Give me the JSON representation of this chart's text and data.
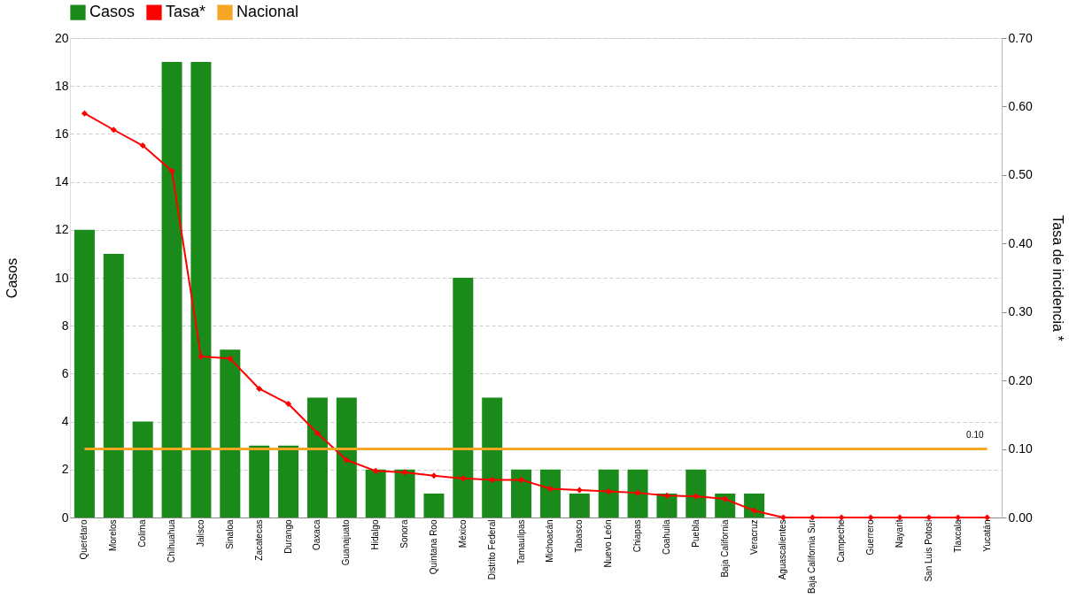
{
  "chart_data": {
    "type": "bar",
    "categories": [
      "Querétaro",
      "Morelos",
      "Colima",
      "Chihuahua",
      "Jalisco",
      "Sinaloa",
      "Zacatecas",
      "Durango",
      "Oaxaca",
      "Guanajuato",
      "Hidalgo",
      "Sonora",
      "Quintana Roo",
      "México",
      "Distrito Federal",
      "Tamaulipas",
      "Michoacán",
      "Tabasco",
      "Nuevo León",
      "Chiapas",
      "Coahuila",
      "Puebla",
      "Baja California",
      "Veracruz",
      "Aguascalientes",
      "Baja California Sur",
      "Campeche",
      "Guerrero",
      "Nayarit",
      "San Luis Potosí",
      "Tlaxcala",
      "Yucatán"
    ],
    "series": [
      {
        "name": "Casos",
        "color": "#1a8a1a",
        "values": [
          12,
          11,
          4,
          19,
          19,
          7,
          3,
          3,
          5,
          5,
          2,
          2,
          1,
          10,
          5,
          2,
          2,
          1,
          2,
          2,
          1,
          2,
          1,
          1,
          0,
          0,
          0,
          0,
          0,
          0,
          0,
          0
        ]
      },
      {
        "name": "Tasa*",
        "type": "line",
        "axis": "y2",
        "color": "#ff0000",
        "marker": "diamond",
        "values": [
          0.59,
          0.566,
          0.543,
          0.506,
          0.235,
          0.232,
          0.188,
          0.166,
          0.123,
          0.084,
          0.068,
          0.066,
          0.061,
          0.057,
          0.055,
          0.055,
          0.042,
          0.04,
          0.038,
          0.036,
          0.032,
          0.031,
          0.027,
          0.01,
          0,
          0,
          0,
          0,
          0,
          0,
          0,
          0
        ]
      },
      {
        "name": "Nacional",
        "type": "line",
        "axis": "y2",
        "color": "#f5a623",
        "marker": "none",
        "values": [
          0.1,
          0.1,
          0.1,
          0.1,
          0.1,
          0.1,
          0.1,
          0.1,
          0.1,
          0.1,
          0.1,
          0.1,
          0.1,
          0.1,
          0.1,
          0.1,
          0.1,
          0.1,
          0.1,
          0.1,
          0.1,
          0.1,
          0.1,
          0.1,
          0.1,
          0.1,
          0.1,
          0.1,
          0.1,
          0.1,
          0.1,
          0.1
        ]
      }
    ],
    "ylabel": "Casos",
    "y2label": "Tasa de incidencia *",
    "ylim": [
      0,
      20
    ],
    "yticks": [
      0,
      2,
      4,
      6,
      8,
      10,
      12,
      14,
      16,
      18,
      20
    ],
    "y2lim": [
      0,
      0.7
    ],
    "y2ticks": [
      {
        "value": 0,
        "label": "0.00"
      },
      {
        "value": 0.1,
        "label": "0.10"
      },
      {
        "value": 0.2,
        "label": "0.20"
      },
      {
        "value": 0.3,
        "label": "0.30"
      },
      {
        "value": 0.4,
        "label": "0.40"
      },
      {
        "value": 0.5,
        "label": "0.50"
      },
      {
        "value": 0.6,
        "label": "0.60"
      },
      {
        "value": 0.7,
        "label": "0.70"
      }
    ],
    "annotations": [
      "0.10"
    ],
    "grid": "y",
    "legend": "top"
  }
}
